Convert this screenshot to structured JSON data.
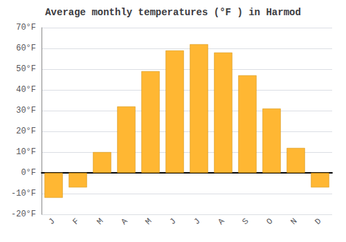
{
  "chart_data": {
    "type": "bar",
    "title": "Average monthly temperatures (°F ) in Harmod",
    "categories": [
      "J",
      "F",
      "M",
      "A",
      "M",
      "J",
      "J",
      "A",
      "S",
      "O",
      "N",
      "D"
    ],
    "values": [
      -12,
      -7,
      10,
      32,
      49,
      59,
      62,
      58,
      47,
      31,
      12,
      -7
    ],
    "color": "#FFB733",
    "ylim": [
      -20,
      70
    ],
    "yticks": [
      {
        "value": -20,
        "label": "-20°F"
      },
      {
        "value": -10,
        "label": "-10°F"
      },
      {
        "value": 0,
        "label": "0°F"
      },
      {
        "value": 10,
        "label": "10°F"
      },
      {
        "value": 20,
        "label": "20°F"
      },
      {
        "value": 30,
        "label": "30°F"
      },
      {
        "value": 40,
        "label": "40°F"
      },
      {
        "value": 50,
        "label": "50°F"
      },
      {
        "value": 60,
        "label": "60°F"
      },
      {
        "value": 70,
        "label": "70°F"
      }
    ],
    "grid": true
  }
}
